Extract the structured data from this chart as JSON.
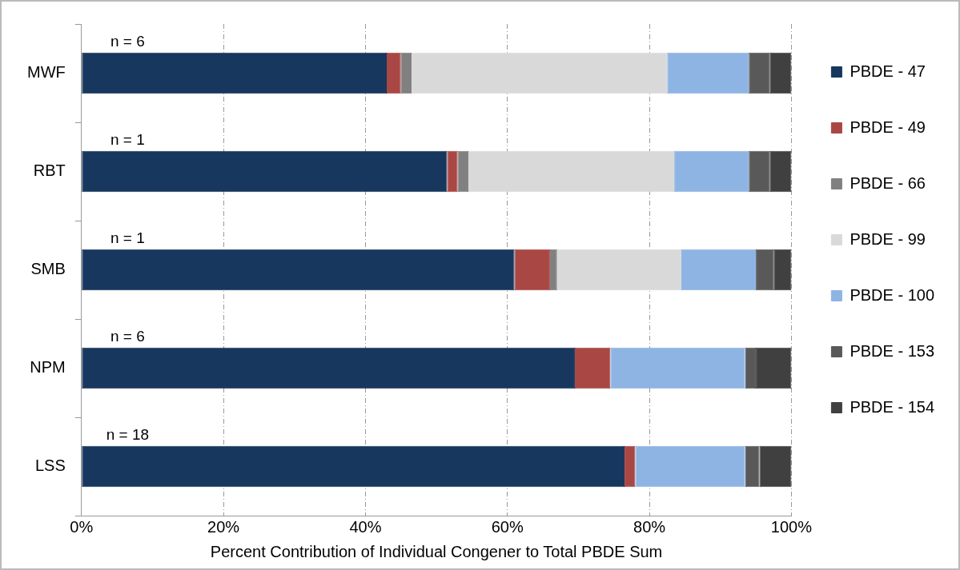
{
  "chart_data": {
    "type": "bar",
    "orientation": "horizontal",
    "stacked": true,
    "categories": [
      "MWF",
      "RBT",
      "SMB",
      "NPM",
      "LSS"
    ],
    "series": [
      {
        "name": "PBDE - 47",
        "color": "#17375e",
        "values": [
          43,
          51.5,
          61,
          69.5,
          76.5
        ]
      },
      {
        "name": "PBDE - 49",
        "color": "#a94744",
        "values": [
          2,
          1.5,
          5,
          5,
          1.5
        ]
      },
      {
        "name": "PBDE - 66",
        "color": "#808080",
        "values": [
          1.5,
          1.5,
          1,
          0,
          0
        ]
      },
      {
        "name": "PBDE - 99",
        "color": "#d9d9d9",
        "values": [
          36,
          29,
          17.5,
          0,
          0
        ]
      },
      {
        "name": "PBDE - 100",
        "color": "#8eb4e3",
        "values": [
          11.5,
          10.5,
          10.5,
          19,
          15.5
        ]
      },
      {
        "name": "PBDE - 153",
        "color": "#595959",
        "values": [
          3,
          3,
          2.5,
          1.5,
          2
        ]
      },
      {
        "name": "PBDE - 154",
        "color": "#404040",
        "values": [
          3,
          3,
          2.5,
          5,
          4.5
        ]
      }
    ],
    "xlabel": "Percent Contribution of Individual Congener to Total PBDE Sum",
    "xlim": [
      0,
      100
    ],
    "xticks": [
      {
        "value": 0,
        "label": "0%"
      },
      {
        "value": 20,
        "label": "20%"
      },
      {
        "value": 40,
        "label": "40%"
      },
      {
        "value": 60,
        "label": "60%"
      },
      {
        "value": 80,
        "label": "80%"
      },
      {
        "value": 100,
        "label": "100%"
      }
    ],
    "annotations": [
      "n = 6",
      "n = 1",
      "n = 1",
      "n = 6",
      "n = 18"
    ],
    "grid": "x",
    "legend": "right"
  }
}
